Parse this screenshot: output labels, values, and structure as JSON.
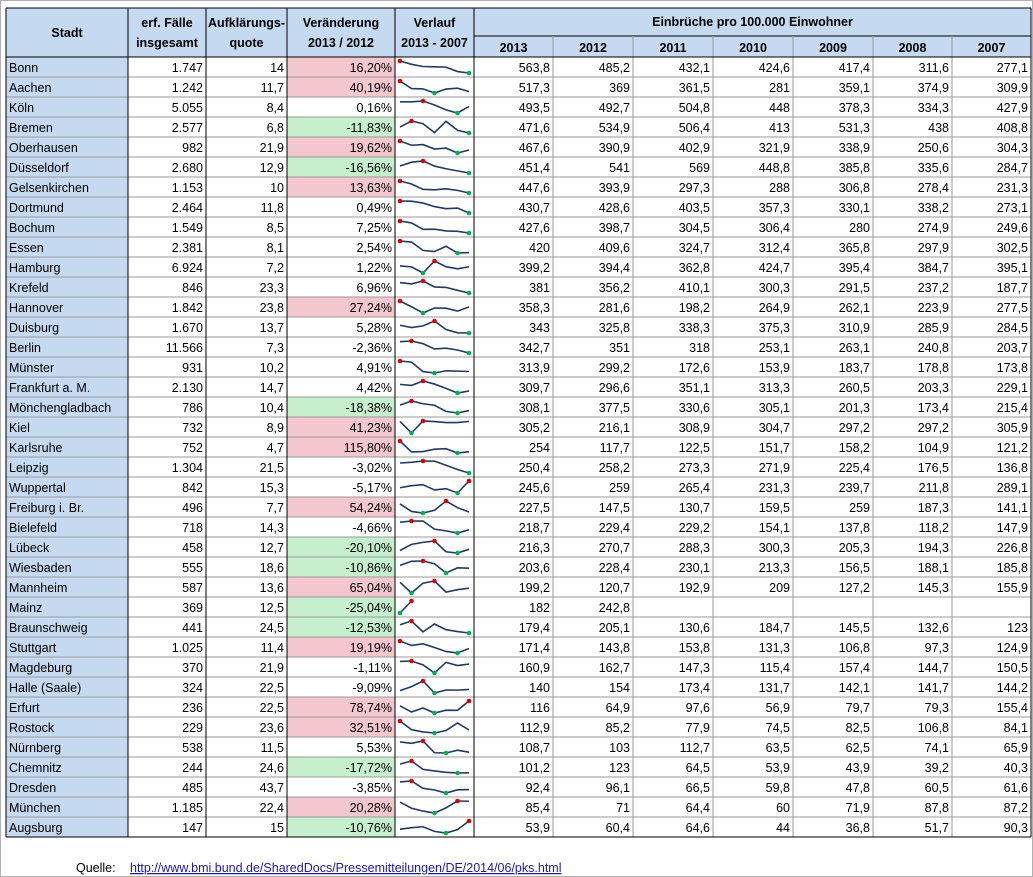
{
  "header": {
    "city": "Stadt",
    "cases": [
      "erf. Fälle",
      "insgesamt"
    ],
    "quote": [
      "Aufklärungs-",
      "quote"
    ],
    "change": [
      "Veränderung",
      "2013 / 2012"
    ],
    "trend": [
      "Verlauf",
      "2013 - 2007"
    ],
    "group": "Einbrüche pro 100.000 Einwohner",
    "years": [
      "2013",
      "2012",
      "2011",
      "2010",
      "2009",
      "2008",
      "2007"
    ]
  },
  "rows": [
    {
      "city": "Bonn",
      "cases": "1.747",
      "quote": "14",
      "change": "16,20%",
      "highlight": "#f4c7ce",
      "values": [
        563.8,
        485.2,
        432.1,
        424.6,
        417.4,
        311.6,
        277.1
      ],
      "value_labels": [
        "563,8",
        "485,2",
        "432,1",
        "424,6",
        "417,4",
        "311,6",
        "277,1"
      ]
    },
    {
      "city": "Aachen",
      "cases": "1.242",
      "quote": "11,7",
      "change": "40,19%",
      "highlight": "#f4c7ce",
      "values": [
        517.3,
        369,
        361.5,
        281,
        359.1,
        374.9,
        309.9
      ],
      "value_labels": [
        "517,3",
        "369",
        "361,5",
        "281",
        "359,1",
        "374,9",
        "309,9"
      ]
    },
    {
      "city": "Köln",
      "cases": "5.055",
      "quote": "8,4",
      "change": "0,16%",
      "highlight": null,
      "values": [
        493.5,
        492.7,
        504.8,
        448,
        378.3,
        334.3,
        427.9
      ],
      "value_labels": [
        "493,5",
        "492,7",
        "504,8",
        "448",
        "378,3",
        "334,3",
        "427,9"
      ]
    },
    {
      "city": "Bremen",
      "cases": "2.577",
      "quote": "6,8",
      "change": "-11,83%",
      "highlight": "#c6efce",
      "values": [
        471.6,
        534.9,
        506.4,
        413,
        531.3,
        438,
        408.8
      ],
      "value_labels": [
        "471,6",
        "534,9",
        "506,4",
        "413",
        "531,3",
        "438",
        "408,8"
      ]
    },
    {
      "city": "Oberhausen",
      "cases": "982",
      "quote": "21,9",
      "change": "19,62%",
      "highlight": "#f4c7ce",
      "values": [
        467.6,
        390.9,
        402.9,
        321.9,
        338.9,
        250.6,
        304.3
      ],
      "value_labels": [
        "467,6",
        "390,9",
        "402,9",
        "321,9",
        "338,9",
        "250,6",
        "304,3"
      ]
    },
    {
      "city": "Düsseldorf",
      "cases": "2.680",
      "quote": "12,9",
      "change": "-16,56%",
      "highlight": "#c6efce",
      "values": [
        451.4,
        541,
        569,
        448.8,
        385.8,
        335.6,
        284.7
      ],
      "value_labels": [
        "451,4",
        "541",
        "569",
        "448,8",
        "385,8",
        "335,6",
        "284,7"
      ]
    },
    {
      "city": "Gelsenkirchen",
      "cases": "1.153",
      "quote": "10",
      "change": "13,63%",
      "highlight": "#f4c7ce",
      "values": [
        447.6,
        393.9,
        297.3,
        288,
        306.8,
        278.4,
        231.3
      ],
      "value_labels": [
        "447,6",
        "393,9",
        "297,3",
        "288",
        "306,8",
        "278,4",
        "231,3"
      ]
    },
    {
      "city": "Dortmund",
      "cases": "2.464",
      "quote": "11,8",
      "change": "0,49%",
      "highlight": null,
      "values": [
        430.7,
        428.6,
        403.5,
        357.3,
        330.1,
        338.2,
        273.1
      ],
      "value_labels": [
        "430,7",
        "428,6",
        "403,5",
        "357,3",
        "330,1",
        "338,2",
        "273,1"
      ]
    },
    {
      "city": "Bochum",
      "cases": "1.549",
      "quote": "8,5",
      "change": "7,25%",
      "highlight": null,
      "values": [
        427.6,
        398.7,
        304.5,
        306.4,
        280,
        274.9,
        249.6
      ],
      "value_labels": [
        "427,6",
        "398,7",
        "304,5",
        "306,4",
        "280",
        "274,9",
        "249,6"
      ]
    },
    {
      "city": "Essen",
      "cases": "2.381",
      "quote": "8,1",
      "change": "2,54%",
      "highlight": null,
      "values": [
        420,
        409.6,
        324.7,
        312.4,
        365.8,
        297.9,
        302.5
      ],
      "value_labels": [
        "420",
        "409,6",
        "324,7",
        "312,4",
        "365,8",
        "297,9",
        "302,5"
      ]
    },
    {
      "city": "Hamburg",
      "cases": "6.924",
      "quote": "7,2",
      "change": "1,22%",
      "highlight": null,
      "values": [
        399.2,
        394.4,
        362.8,
        424.7,
        395.4,
        384.7,
        395.1
      ],
      "value_labels": [
        "399,2",
        "394,4",
        "362,8",
        "424,7",
        "395,4",
        "384,7",
        "395,1"
      ]
    },
    {
      "city": "Krefeld",
      "cases": "846",
      "quote": "23,3",
      "change": "6,96%",
      "highlight": null,
      "values": [
        381,
        356.2,
        410.1,
        300.3,
        291.5,
        237.2,
        187.7
      ],
      "value_labels": [
        "381",
        "356,2",
        "410,1",
        "300,3",
        "291,5",
        "237,2",
        "187,7"
      ]
    },
    {
      "city": "Hannover",
      "cases": "1.842",
      "quote": "23,8",
      "change": "27,24%",
      "highlight": "#f4c7ce",
      "values": [
        358.3,
        281.6,
        198.2,
        264.9,
        262.1,
        223.9,
        277.5
      ],
      "value_labels": [
        "358,3",
        "281,6",
        "198,2",
        "264,9",
        "262,1",
        "223,9",
        "277,5"
      ]
    },
    {
      "city": "Duisburg",
      "cases": "1.670",
      "quote": "13,7",
      "change": "5,28%",
      "highlight": null,
      "values": [
        343,
        325.8,
        338.3,
        375.3,
        310.9,
        285.9,
        284.5
      ],
      "value_labels": [
        "343",
        "325,8",
        "338,3",
        "375,3",
        "310,9",
        "285,9",
        "284,5"
      ]
    },
    {
      "city": "Berlin",
      "cases": "11.566",
      "quote": "7,3",
      "change": "-2,36%",
      "highlight": null,
      "values": [
        342.7,
        351,
        318,
        253.1,
        263.1,
        240.8,
        203.7
      ],
      "value_labels": [
        "342,7",
        "351",
        "318",
        "253,1",
        "263,1",
        "240,8",
        "203,7"
      ]
    },
    {
      "city": "Münster",
      "cases": "931",
      "quote": "10,2",
      "change": "4,91%",
      "highlight": null,
      "values": [
        313.9,
        299.2,
        172.6,
        153.9,
        183.7,
        178.8,
        173.8
      ],
      "value_labels": [
        "313,9",
        "299,2",
        "172,6",
        "153,9",
        "183,7",
        "178,8",
        "173,8"
      ]
    },
    {
      "city": "Frankfurt a. M.",
      "cases": "2.130",
      "quote": "14,7",
      "change": "4,42%",
      "highlight": null,
      "values": [
        309.7,
        296.6,
        351.1,
        313.3,
        260.5,
        203.3,
        229.1
      ],
      "value_labels": [
        "309,7",
        "296,6",
        "351,1",
        "313,3",
        "260,5",
        "203,3",
        "229,1"
      ]
    },
    {
      "city": "Mönchengladbach",
      "cases": "786",
      "quote": "10,4",
      "change": "-18,38%",
      "highlight": "#c6efce",
      "values": [
        308.1,
        377.5,
        330.6,
        305.1,
        201.3,
        173.4,
        215.4
      ],
      "value_labels": [
        "308,1",
        "377,5",
        "330,6",
        "305,1",
        "201,3",
        "173,4",
        "215,4"
      ]
    },
    {
      "city": "Kiel",
      "cases": "732",
      "quote": "8,9",
      "change": "41,23%",
      "highlight": "#f4c7ce",
      "values": [
        305.2,
        216.1,
        308.9,
        304.7,
        297.2,
        297.2,
        305.9
      ],
      "value_labels": [
        "305,2",
        "216,1",
        "308,9",
        "304,7",
        "297,2",
        "297,2",
        "305,9"
      ]
    },
    {
      "city": "Karlsruhe",
      "cases": "752",
      "quote": "4,7",
      "change": "115,80%",
      "highlight": "#f4c7ce",
      "values": [
        254,
        117.7,
        122.5,
        151.7,
        158.2,
        104.9,
        121.2
      ],
      "value_labels": [
        "254",
        "117,7",
        "122,5",
        "151,7",
        "158,2",
        "104,9",
        "121,2"
      ]
    },
    {
      "city": "Leipzig",
      "cases": "1.304",
      "quote": "21,5",
      "change": "-3,02%",
      "highlight": null,
      "values": [
        250.4,
        258.2,
        273.3,
        271.9,
        225.4,
        176.5,
        136.8
      ],
      "value_labels": [
        "250,4",
        "258,2",
        "273,3",
        "271,9",
        "225,4",
        "176,5",
        "136,8"
      ]
    },
    {
      "city": "Wuppertal",
      "cases": "842",
      "quote": "15,3",
      "change": "-5,17%",
      "highlight": null,
      "values": [
        245.6,
        259,
        265.4,
        231.3,
        239.7,
        211.8,
        289.1
      ],
      "value_labels": [
        "245,6",
        "259",
        "265,4",
        "231,3",
        "239,7",
        "211,8",
        "289,1"
      ]
    },
    {
      "city": "Freiburg i. Br.",
      "cases": "496",
      "quote": "7,7",
      "change": "54,24%",
      "highlight": "#f4c7ce",
      "values": [
        227.5,
        147.5,
        130.7,
        159.5,
        259,
        187.3,
        141.1
      ],
      "value_labels": [
        "227,5",
        "147,5",
        "130,7",
        "159,5",
        "259",
        "187,3",
        "141,1"
      ]
    },
    {
      "city": "Bielefeld",
      "cases": "718",
      "quote": "14,3",
      "change": "-4,66%",
      "highlight": null,
      "values": [
        218.7,
        229.4,
        229.2,
        154.1,
        137.8,
        118.2,
        147.9
      ],
      "value_labels": [
        "218,7",
        "229,4",
        "229,2",
        "154,1",
        "137,8",
        "118,2",
        "147,9"
      ]
    },
    {
      "city": "Lübeck",
      "cases": "458",
      "quote": "12,7",
      "change": "-20,10%",
      "highlight": "#c6efce",
      "values": [
        216.3,
        270.7,
        288.3,
        300.3,
        205.3,
        194.3,
        226.8
      ],
      "value_labels": [
        "216,3",
        "270,7",
        "288,3",
        "300,3",
        "205,3",
        "194,3",
        "226,8"
      ]
    },
    {
      "city": "Wiesbaden",
      "cases": "555",
      "quote": "18,6",
      "change": "-10,86%",
      "highlight": "#c6efce",
      "values": [
        203.6,
        228.4,
        230.1,
        213.3,
        156.5,
        188.1,
        185.8
      ],
      "value_labels": [
        "203,6",
        "228,4",
        "230,1",
        "213,3",
        "156,5",
        "188,1",
        "185,8"
      ]
    },
    {
      "city": "Mannheim",
      "cases": "587",
      "quote": "13,6",
      "change": "65,04%",
      "highlight": "#f4c7ce",
      "values": [
        199.2,
        120.7,
        192.9,
        209,
        127.2,
        145.3,
        155.9
      ],
      "value_labels": [
        "199,2",
        "120,7",
        "192,9",
        "209",
        "127,2",
        "145,3",
        "155,9"
      ]
    },
    {
      "city": "Mainz",
      "cases": "369",
      "quote": "12,5",
      "change": "-25,04%",
      "highlight": "#c6efce",
      "values": [
        182,
        242.8,
        null,
        null,
        null,
        null,
        null
      ],
      "value_labels": [
        "182",
        "242,8",
        null,
        null,
        null,
        null,
        null
      ]
    },
    {
      "city": "Braunschweig",
      "cases": "441",
      "quote": "24,5",
      "change": "-12,53%",
      "highlight": "#c6efce",
      "values": [
        179.4,
        205.1,
        130.6,
        184.7,
        145.5,
        132.6,
        123
      ],
      "value_labels": [
        "179,4",
        "205,1",
        "130,6",
        "184,7",
        "145,5",
        "132,6",
        "123"
      ]
    },
    {
      "city": "Stuttgart",
      "cases": "1.025",
      "quote": "11,4",
      "change": "19,19%",
      "highlight": "#f4c7ce",
      "values": [
        171.4,
        143.8,
        153.8,
        131.3,
        106.8,
        97.3,
        124.9
      ],
      "value_labels": [
        "171,4",
        "143,8",
        "153,8",
        "131,3",
        "106,8",
        "97,3",
        "124,9"
      ]
    },
    {
      "city": "Magdeburg",
      "cases": "370",
      "quote": "21,9",
      "change": "-1,11%",
      "highlight": null,
      "values": [
        160.9,
        162.7,
        147.3,
        115.4,
        157.4,
        144.7,
        150.5
      ],
      "value_labels": [
        "160,9",
        "162,7",
        "147,3",
        "115,4",
        "157,4",
        "144,7",
        "150,5"
      ]
    },
    {
      "city": "Halle (Saale)",
      "cases": "324",
      "quote": "22,5",
      "change": "-9,09%",
      "highlight": null,
      "values": [
        140,
        154,
        173.4,
        131.7,
        142.1,
        141.7,
        144.2
      ],
      "value_labels": [
        "140",
        "154",
        "173,4",
        "131,7",
        "142,1",
        "141,7",
        "144,2"
      ]
    },
    {
      "city": "Erfurt",
      "cases": "236",
      "quote": "22,5",
      "change": "78,74%",
      "highlight": "#f4c7ce",
      "values": [
        116,
        64.9,
        97.6,
        56.9,
        79.7,
        79.3,
        155.4
      ],
      "value_labels": [
        "116",
        "64,9",
        "97,6",
        "56,9",
        "79,7",
        "79,3",
        "155,4"
      ]
    },
    {
      "city": "Rostock",
      "cases": "229",
      "quote": "23,6",
      "change": "32,51%",
      "highlight": "#f4c7ce",
      "values": [
        112.9,
        85.2,
        77.9,
        74.5,
        82.5,
        106.8,
        84.1
      ],
      "value_labels": [
        "112,9",
        "85,2",
        "77,9",
        "74,5",
        "82,5",
        "106,8",
        "84,1"
      ]
    },
    {
      "city": "Nürnberg",
      "cases": "538",
      "quote": "11,5",
      "change": "5,53%",
      "highlight": null,
      "values": [
        108.7,
        103,
        112.7,
        63.5,
        62.5,
        74.1,
        65.9
      ],
      "value_labels": [
        "108,7",
        "103",
        "112,7",
        "63,5",
        "62,5",
        "74,1",
        "65,9"
      ]
    },
    {
      "city": "Chemnitz",
      "cases": "244",
      "quote": "24,6",
      "change": "-17,72%",
      "highlight": "#c6efce",
      "values": [
        101.2,
        123,
        64.5,
        53.9,
        43.9,
        39.2,
        40.3
      ],
      "value_labels": [
        "101,2",
        "123",
        "64,5",
        "53,9",
        "43,9",
        "39,2",
        "40,3"
      ]
    },
    {
      "city": "Dresden",
      "cases": "485",
      "quote": "43,7",
      "change": "-3,85%",
      "highlight": null,
      "values": [
        92.4,
        96.1,
        66.5,
        59.8,
        47.8,
        60.5,
        61.6
      ],
      "value_labels": [
        "92,4",
        "96,1",
        "66,5",
        "59,8",
        "47,8",
        "60,5",
        "61,6"
      ]
    },
    {
      "city": "München",
      "cases": "1.185",
      "quote": "22,4",
      "change": "20,28%",
      "highlight": "#f4c7ce",
      "values": [
        85.4,
        71,
        64.4,
        60,
        71.9,
        87.8,
        87.2
      ],
      "value_labels": [
        "85,4",
        "71",
        "64,4",
        "60",
        "71,9",
        "87,8",
        "87,2"
      ]
    },
    {
      "city": "Augsburg",
      "cases": "147",
      "quote": "15",
      "change": "-10,76%",
      "highlight": "#c6efce",
      "values": [
        53.9,
        60.4,
        64.6,
        44,
        36.8,
        51.7,
        90.3
      ],
      "value_labels": [
        "53,9",
        "60,4",
        "64,6",
        "44",
        "36,8",
        "51,7",
        "90,3"
      ]
    }
  ],
  "footer": {
    "label": "Quelle:",
    "link": "http://www.bmi.bund.de/SharedDocs/Pressemitteilungen/DE/2014/06/pks.html"
  }
}
